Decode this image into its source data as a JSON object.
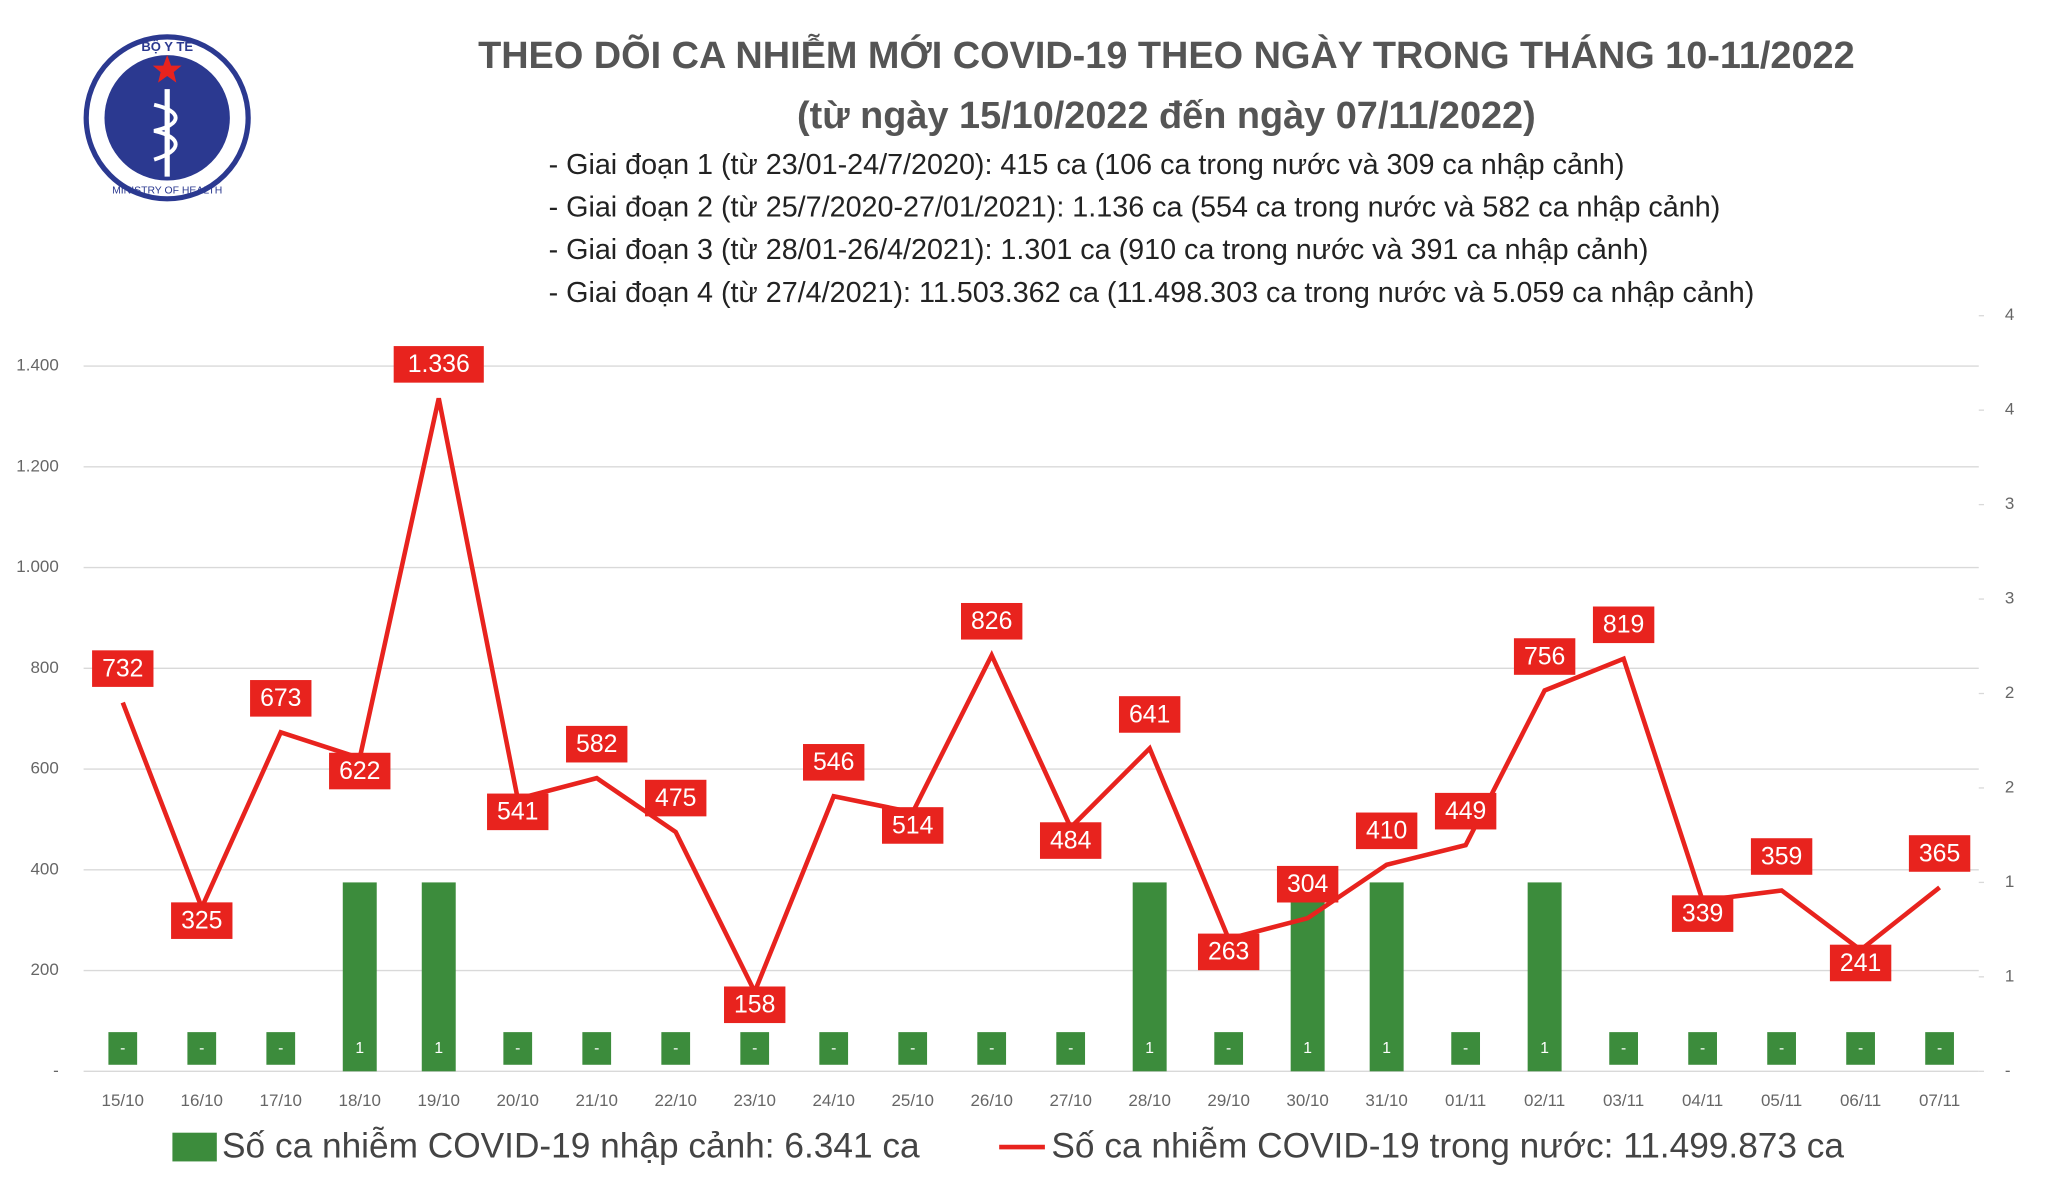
{
  "logo": {
    "top_text": "BỘ Y TẾ",
    "bottom_text": "MINISTRY OF HEALTH"
  },
  "chart_data": {
    "type": "bar-line",
    "title": "THEO DÕI CA NHIỄM MỚI COVID-19 THEO NGÀY TRONG THÁNG 10-11/2022",
    "subtitle": "(từ ngày 15/10/2022 đến ngày 07/11/2022)",
    "notes": [
      "- Giai đoạn 1 (từ 23/01-24/7/2020): 415 ca (106 ca trong nước và 309 ca nhập cảnh)",
      "- Giai đoạn 2 (từ 25/7/2020-27/01/2021): 1.136 ca (554 ca trong nước và 582 ca nhập cảnh)",
      "- Giai đoạn 3 (từ 28/01-26/4/2021): 1.301 ca (910 ca trong nước và 391 ca nhập cảnh)",
      "- Giai đoạn 4 (từ 27/4/2021): 11.503.362 ca (11.498.303 ca trong nước và 5.059 ca nhập cảnh)"
    ],
    "categories": [
      "15/10",
      "16/10",
      "17/10",
      "18/10",
      "19/10",
      "20/10",
      "21/10",
      "22/10",
      "23/10",
      "24/10",
      "25/10",
      "26/10",
      "27/10",
      "28/10",
      "29/10",
      "30/10",
      "31/10",
      "01/11",
      "02/11",
      "03/11",
      "04/11",
      "05/11",
      "06/11",
      "07/11"
    ],
    "series": [
      {
        "name": "Số ca nhiễm COVID-19 nhập cảnh: 6.341 ca",
        "color": "#3c8c3c",
        "axis": "y2",
        "kind": "bar",
        "values": [
          0,
          0,
          0,
          1,
          1,
          0,
          0,
          0,
          0,
          0,
          0,
          0,
          0,
          1,
          0,
          1,
          1,
          0,
          1,
          0,
          0,
          0,
          0,
          0
        ],
        "value_labels": [
          "-",
          "-",
          "-",
          "1",
          "1",
          "-",
          "-",
          "-",
          "-",
          "-",
          "-",
          "-",
          "-",
          "1",
          "-",
          "1",
          "1",
          "-",
          "1",
          "-",
          "-",
          "-",
          "-",
          "-"
        ]
      },
      {
        "name": "Số ca nhiễm COVID-19 trong nước: 11.499.873 ca",
        "color": "#e8231e",
        "kind": "line",
        "values": [
          732,
          325,
          673,
          622,
          1336,
          541,
          582,
          475,
          158,
          546,
          514,
          826,
          484,
          641,
          263,
          304,
          410,
          449,
          756,
          819,
          339,
          359,
          241,
          365
        ],
        "value_labels": [
          "732",
          "325",
          "673",
          "622",
          "1.336",
          "541",
          "582",
          "475",
          "158",
          "546",
          "514",
          "826",
          "484",
          "641",
          "263",
          "304",
          "410",
          "449",
          "756",
          "819",
          "339",
          "359",
          "241",
          "365"
        ]
      }
    ],
    "ylim": [
      0,
      1500
    ],
    "yticks": [
      {
        "value": 0,
        "label": "-"
      },
      200,
      400,
      600,
      800,
      {
        "value": 1000,
        "label": "1.000"
      },
      {
        "value": 1200,
        "label": "1.200"
      },
      {
        "value": 1400,
        "label": "1.400"
      }
    ],
    "y2lim": [
      0,
      4
    ],
    "y2ticks": [
      {
        "value": 0,
        "label": "-"
      },
      {
        "value": 0.5,
        "label": "1"
      },
      1,
      {
        "value": 1.5,
        "label": "2"
      },
      2,
      {
        "value": 2.5,
        "label": "3"
      },
      3,
      {
        "value": 3.5,
        "label": "4"
      },
      4
    ],
    "grid": true
  }
}
